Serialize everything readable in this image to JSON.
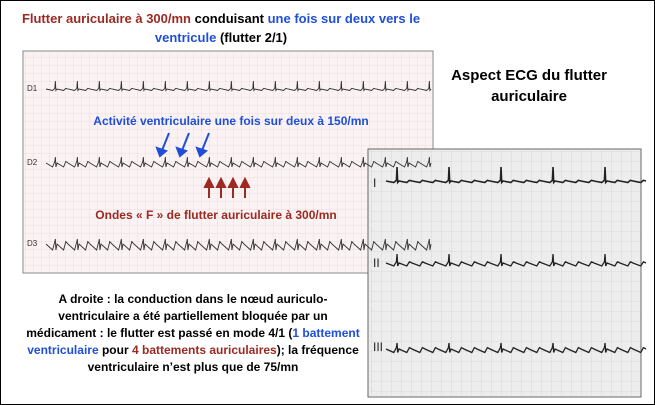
{
  "header": {
    "segments": [
      {
        "text": "Flutter auriculaire à 300/mn",
        "color": "red"
      },
      {
        "text": "conduisant",
        "color": "black"
      },
      {
        "text": "une fois sur deux vers le ventricule",
        "color": "blue"
      },
      {
        "text": "(flutter 2/1)",
        "color": "black"
      }
    ]
  },
  "left_ecg": {
    "leads": [
      "D1",
      "D2",
      "D3"
    ],
    "annotation_blue": "Activité ventriculaire une fois sur deux à 150/mn",
    "annotation_red": "Ondes « F » de flutter auriculaire à 300/mn"
  },
  "right_title": "Aspect ECG du flutter auriculaire",
  "right_ecg": {
    "leads": [
      "I",
      "II",
      "III"
    ]
  },
  "footer": {
    "segments": [
      {
        "text": "A droite : la conduction dans le nœud auriculo-ventriculaire a été partiellement bloquée par un médicament : le flutter est passé en mode 4/1 (",
        "color": "black"
      },
      {
        "text": "1 battement ventriculaire",
        "color": "blue"
      },
      {
        "text": "pour",
        "color": "black"
      },
      {
        "text": "4 battements auriculaires",
        "color": "red"
      },
      {
        "text": "); la fréquence ventriculaire n’est plus que de 75/mn",
        "color": "black"
      }
    ]
  }
}
